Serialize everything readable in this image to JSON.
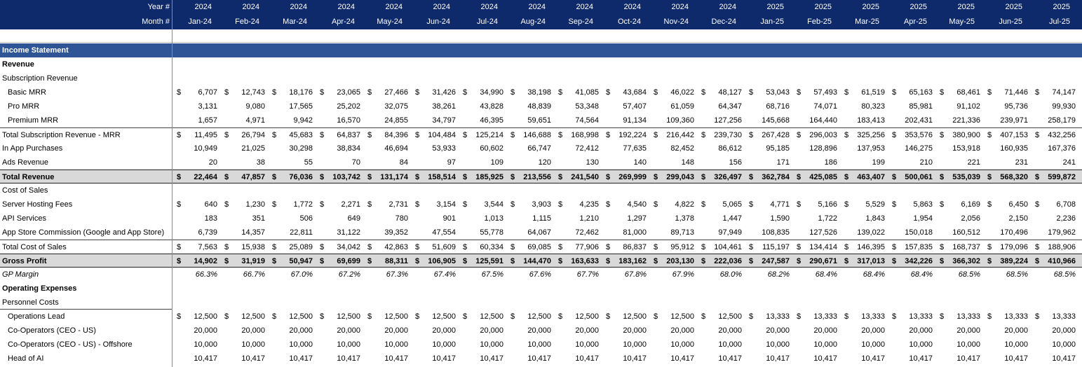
{
  "header": {
    "year_label": "Year #",
    "month_label": "Month #",
    "years": [
      "2024",
      "2024",
      "2024",
      "2024",
      "2024",
      "2024",
      "2024",
      "2024",
      "2024",
      "2024",
      "2024",
      "2024",
      "2025",
      "2025",
      "2025",
      "2025",
      "2025",
      "2025",
      "2025"
    ],
    "months": [
      "Jan-24",
      "Feb-24",
      "Mar-24",
      "Apr-24",
      "May-24",
      "Jun-24",
      "Jul-24",
      "Aug-24",
      "Sep-24",
      "Oct-24",
      "Nov-24",
      "Dec-24",
      "Jan-25",
      "Feb-25",
      "Mar-25",
      "Apr-25",
      "May-25",
      "Jun-25",
      "Jul-25"
    ]
  },
  "colors": {
    "header_bg": "#0e2a6b",
    "section_bg": "#2f5597",
    "total_bg": "#d9d9d9"
  },
  "rows": [
    {
      "label": "Income Statement",
      "style": "section"
    },
    {
      "label": "Revenue",
      "style": "bold"
    },
    {
      "label": "Subscription Revenue",
      "style": "plain"
    },
    {
      "label": "Basic MRR",
      "style": "indent",
      "currency": true,
      "values": [
        "6,707",
        "12,743",
        "18,176",
        "23,065",
        "27,466",
        "31,426",
        "34,990",
        "38,198",
        "41,085",
        "43,684",
        "46,022",
        "48,127",
        "53,043",
        "57,493",
        "61,519",
        "65,163",
        "68,461",
        "71,446",
        "74,147"
      ]
    },
    {
      "label": "Pro MRR",
      "style": "indent",
      "values": [
        "3,131",
        "9,080",
        "17,565",
        "25,202",
        "32,075",
        "38,261",
        "43,828",
        "48,839",
        "53,348",
        "57,407",
        "61,059",
        "64,347",
        "68,716",
        "74,071",
        "80,323",
        "85,981",
        "91,102",
        "95,736",
        "99,930"
      ]
    },
    {
      "label": "Premium MRR",
      "style": "indent",
      "values": [
        "1,657",
        "4,971",
        "9,942",
        "16,570",
        "24,855",
        "34,797",
        "46,395",
        "59,651",
        "74,564",
        "91,134",
        "109,360",
        "127,256",
        "145,668",
        "164,440",
        "183,413",
        "202,431",
        "221,336",
        "239,971",
        "258,179"
      ]
    },
    {
      "label": "Total Subscription Revenue - MRR",
      "style": "subtotal",
      "currency": true,
      "values": [
        "11,495",
        "26,794",
        "45,683",
        "64,837",
        "84,396",
        "104,484",
        "125,214",
        "146,688",
        "168,998",
        "192,224",
        "216,442",
        "239,730",
        "267,428",
        "296,003",
        "325,256",
        "353,576",
        "380,900",
        "407,153",
        "432,256"
      ]
    },
    {
      "label": "In App Purchases",
      "style": "plain",
      "values": [
        "10,949",
        "21,025",
        "30,298",
        "38,834",
        "46,694",
        "53,933",
        "60,602",
        "66,747",
        "72,412",
        "77,635",
        "82,452",
        "86,612",
        "95,185",
        "128,896",
        "137,953",
        "146,275",
        "153,918",
        "160,935",
        "167,376"
      ]
    },
    {
      "label": "Ads Revenue",
      "style": "plain",
      "values": [
        "20",
        "38",
        "55",
        "70",
        "84",
        "97",
        "109",
        "120",
        "130",
        "140",
        "148",
        "156",
        "171",
        "186",
        "199",
        "210",
        "221",
        "231",
        "241"
      ]
    },
    {
      "label": "Total Revenue",
      "style": "total",
      "currency": true,
      "values": [
        "22,464",
        "47,857",
        "76,036",
        "103,742",
        "131,174",
        "158,514",
        "185,925",
        "213,556",
        "241,540",
        "269,999",
        "299,043",
        "326,497",
        "362,784",
        "425,085",
        "463,407",
        "500,061",
        "535,039",
        "568,320",
        "599,872"
      ]
    },
    {
      "label": "Cost of Sales",
      "style": "plain"
    },
    {
      "label": "Server Hosting Fees",
      "style": "plain",
      "currency": true,
      "values": [
        "640",
        "1,230",
        "1,772",
        "2,271",
        "2,731",
        "3,154",
        "3,544",
        "3,903",
        "4,235",
        "4,540",
        "4,822",
        "5,065",
        "4,771",
        "5,166",
        "5,529",
        "5,863",
        "6,169",
        "6,450",
        "6,708"
      ]
    },
    {
      "label": "API Services",
      "style": "plain",
      "values": [
        "183",
        "351",
        "506",
        "649",
        "780",
        "901",
        "1,013",
        "1,115",
        "1,210",
        "1,297",
        "1,378",
        "1,447",
        "1,590",
        "1,722",
        "1,843",
        "1,954",
        "2,056",
        "2,150",
        "2,236"
      ]
    },
    {
      "label": "App Store Commission (Google and App Store)",
      "style": "plain",
      "values": [
        "6,739",
        "14,357",
        "22,811",
        "31,122",
        "39,352",
        "47,554",
        "55,778",
        "64,067",
        "72,462",
        "81,000",
        "89,713",
        "97,949",
        "108,835",
        "127,526",
        "139,022",
        "150,018",
        "160,512",
        "170,496",
        "179,962"
      ]
    },
    {
      "label": "Total Cost of Sales",
      "style": "subtotal",
      "currency": true,
      "values": [
        "7,563",
        "15,938",
        "25,089",
        "34,042",
        "42,863",
        "51,609",
        "60,334",
        "69,085",
        "77,906",
        "86,837",
        "95,912",
        "104,461",
        "115,197",
        "134,414",
        "146,395",
        "157,835",
        "168,737",
        "179,096",
        "188,906"
      ]
    },
    {
      "label": "Gross Profit",
      "style": "total",
      "currency": true,
      "values": [
        "14,902",
        "31,919",
        "50,947",
        "69,699",
        "88,311",
        "106,905",
        "125,591",
        "144,470",
        "163,633",
        "183,162",
        "203,130",
        "222,036",
        "247,587",
        "290,671",
        "317,013",
        "342,226",
        "366,302",
        "389,224",
        "410,966"
      ]
    },
    {
      "label": "GP Margin",
      "style": "italic",
      "values": [
        "66.3%",
        "66.7%",
        "67.0%",
        "67.2%",
        "67.3%",
        "67.4%",
        "67.5%",
        "67.6%",
        "67.7%",
        "67.8%",
        "67.9%",
        "68.0%",
        "68.2%",
        "68.4%",
        "68.4%",
        "68.4%",
        "68.5%",
        "68.5%",
        "68.5%"
      ]
    },
    {
      "label": "Operating Expenses",
      "style": "bold"
    },
    {
      "label": "Personnel Costs",
      "style": "underline"
    },
    {
      "label": "Operations Lead",
      "style": "indent",
      "currency": true,
      "values": [
        "12,500",
        "12,500",
        "12,500",
        "12,500",
        "12,500",
        "12,500",
        "12,500",
        "12,500",
        "12,500",
        "12,500",
        "12,500",
        "12,500",
        "13,333",
        "13,333",
        "13,333",
        "13,333",
        "13,333",
        "13,333",
        "13,333"
      ]
    },
    {
      "label": "Co-Operators (CEO - US)",
      "style": "indent",
      "values": [
        "20,000",
        "20,000",
        "20,000",
        "20,000",
        "20,000",
        "20,000",
        "20,000",
        "20,000",
        "20,000",
        "20,000",
        "20,000",
        "20,000",
        "20,000",
        "20,000",
        "20,000",
        "20,000",
        "20,000",
        "20,000",
        "20,000"
      ]
    },
    {
      "label": "Co-Operators (CEO - US) - Offshore",
      "style": "indent",
      "values": [
        "10,000",
        "10,000",
        "10,000",
        "10,000",
        "10,000",
        "10,000",
        "10,000",
        "10,000",
        "10,000",
        "10,000",
        "10,000",
        "10,000",
        "10,000",
        "10,000",
        "10,000",
        "10,000",
        "10,000",
        "10,000",
        "10,000"
      ]
    },
    {
      "label": "Head of AI",
      "style": "indent",
      "values": [
        "10,417",
        "10,417",
        "10,417",
        "10,417",
        "10,417",
        "10,417",
        "10,417",
        "10,417",
        "10,417",
        "10,417",
        "10,417",
        "10,417",
        "10,417",
        "10,417",
        "10,417",
        "10,417",
        "10,417",
        "10,417",
        "10,417"
      ]
    }
  ]
}
